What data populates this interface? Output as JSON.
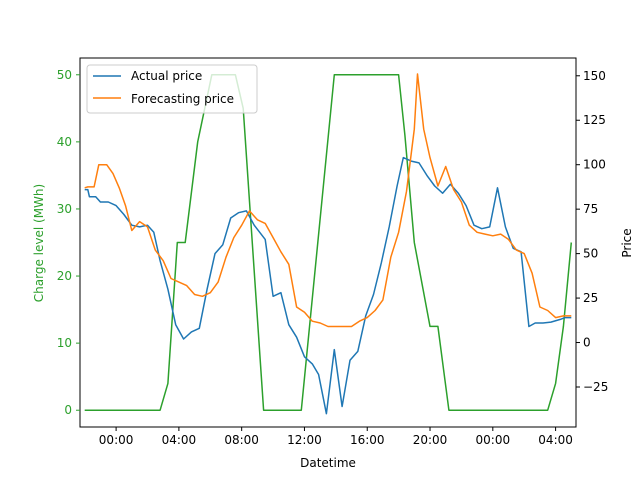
{
  "chart_data": {
    "type": "line",
    "title": "",
    "xlabel": "Datetime",
    "ylabel_left": "Charge level (MWh)",
    "ylabel_right": "Price",
    "x_unit": "hours elapsed from 00:00 of the first day",
    "x_ticks": [
      {
        "x": 0,
        "label": "00:00"
      },
      {
        "x": 4,
        "label": "04:00"
      },
      {
        "x": 8,
        "label": "08:00"
      },
      {
        "x": 12,
        "label": "12:00"
      },
      {
        "x": 16,
        "label": "16:00"
      },
      {
        "x": 20,
        "label": "20:00"
      },
      {
        "x": 24,
        "label": "00:00"
      },
      {
        "x": 28,
        "label": "04:00"
      }
    ],
    "x_range": [
      -2.3,
      29.3
    ],
    "y_left_range": [
      -2.5,
      52.5
    ],
    "y_left_ticks": [
      0,
      10,
      20,
      30,
      40,
      50
    ],
    "y_right_range": [
      -47.5,
      160
    ],
    "y_right_ticks": [
      -25,
      0,
      25,
      50,
      75,
      100,
      125,
      150
    ],
    "legend": {
      "position": "top-left",
      "entries": [
        "Actual price",
        "Forecasting price"
      ]
    },
    "grid": false,
    "colors": {
      "actual": "#1f77b4",
      "forecast": "#ff7f0e",
      "charge": "#2ca02c"
    },
    "series": [
      {
        "name": "Actual price",
        "axis": "right",
        "color": "#1f77b4",
        "points": [
          [
            -2,
            86
          ],
          [
            -1.8,
            86
          ],
          [
            -1.7,
            82
          ],
          [
            -1.3,
            82
          ],
          [
            -1.0,
            79
          ],
          [
            -0.5,
            79
          ],
          [
            0.0,
            77
          ],
          [
            0.5,
            72
          ],
          [
            1.0,
            66
          ],
          [
            1.5,
            65
          ],
          [
            2.0,
            66
          ],
          [
            2.4,
            62
          ],
          [
            2.8,
            46
          ],
          [
            3.3,
            30
          ],
          [
            3.8,
            10
          ],
          [
            4.3,
            2
          ],
          [
            4.8,
            6
          ],
          [
            5.3,
            8
          ],
          [
            5.8,
            30
          ],
          [
            6.3,
            50
          ],
          [
            6.8,
            55
          ],
          [
            7.3,
            70
          ],
          [
            7.8,
            73
          ],
          [
            8.3,
            74
          ],
          [
            8.8,
            66
          ],
          [
            9.5,
            58
          ],
          [
            10.0,
            26
          ],
          [
            10.5,
            28
          ],
          [
            11.0,
            10
          ],
          [
            11.5,
            3
          ],
          [
            12.0,
            -8
          ],
          [
            12.5,
            -12
          ],
          [
            12.9,
            -18
          ],
          [
            13.4,
            -40
          ],
          [
            13.9,
            -4
          ],
          [
            14.4,
            -36
          ],
          [
            14.9,
            -10
          ],
          [
            15.4,
            -5
          ],
          [
            15.9,
            15
          ],
          [
            16.4,
            27
          ],
          [
            16.9,
            45
          ],
          [
            17.4,
            65
          ],
          [
            17.9,
            88
          ],
          [
            18.3,
            104
          ],
          [
            18.8,
            102
          ],
          [
            19.3,
            101
          ],
          [
            19.8,
            94
          ],
          [
            20.3,
            88
          ],
          [
            20.8,
            84
          ],
          [
            21.3,
            89
          ],
          [
            21.8,
            84
          ],
          [
            22.3,
            77
          ],
          [
            22.8,
            66
          ],
          [
            23.3,
            64
          ],
          [
            23.8,
            65
          ],
          [
            24.3,
            87
          ],
          [
            24.8,
            65
          ],
          [
            25.3,
            53
          ],
          [
            25.8,
            51
          ],
          [
            26.3,
            9
          ],
          [
            26.7,
            11
          ],
          [
            27.2,
            11
          ],
          [
            27.7,
            11.5
          ],
          [
            28.3,
            13
          ],
          [
            28.6,
            14
          ],
          [
            29.0,
            14
          ]
        ]
      },
      {
        "name": "Forecasting price",
        "axis": "right",
        "color": "#ff7f0e",
        "points": [
          [
            -2,
            87
          ],
          [
            -1.8,
            87.5
          ],
          [
            -1.4,
            87.5
          ],
          [
            -1.1,
            100
          ],
          [
            -0.6,
            100
          ],
          [
            -0.2,
            95
          ],
          [
            0.2,
            87
          ],
          [
            0.6,
            77
          ],
          [
            1.0,
            63
          ],
          [
            1.5,
            68
          ],
          [
            2.0,
            65
          ],
          [
            2.5,
            52
          ],
          [
            3.0,
            46
          ],
          [
            3.5,
            36
          ],
          [
            4.0,
            34
          ],
          [
            4.5,
            32
          ],
          [
            5.0,
            27
          ],
          [
            5.5,
            26
          ],
          [
            6.0,
            28
          ],
          [
            6.5,
            34
          ],
          [
            7.0,
            48
          ],
          [
            7.5,
            59
          ],
          [
            8.0,
            66
          ],
          [
            8.5,
            74
          ],
          [
            9.0,
            69
          ],
          [
            9.5,
            67
          ],
          [
            10.0,
            59
          ],
          [
            10.5,
            51
          ],
          [
            11.0,
            44
          ],
          [
            11.5,
            20
          ],
          [
            12.0,
            17
          ],
          [
            12.5,
            12
          ],
          [
            13.0,
            11
          ],
          [
            13.5,
            9
          ],
          [
            14.0,
            9
          ],
          [
            14.5,
            9
          ],
          [
            15.0,
            9
          ],
          [
            15.5,
            12
          ],
          [
            16.0,
            14
          ],
          [
            16.5,
            18
          ],
          [
            17.0,
            24
          ],
          [
            17.5,
            48
          ],
          [
            18.0,
            62
          ],
          [
            18.5,
            85
          ],
          [
            19.0,
            120
          ],
          [
            19.2,
            151
          ],
          [
            19.6,
            120
          ],
          [
            20.0,
            104
          ],
          [
            20.5,
            88
          ],
          [
            21.0,
            99
          ],
          [
            21.5,
            86
          ],
          [
            22.0,
            79
          ],
          [
            22.5,
            66
          ],
          [
            23.0,
            62
          ],
          [
            23.5,
            61
          ],
          [
            24.0,
            60
          ],
          [
            24.5,
            61
          ],
          [
            25.0,
            58
          ],
          [
            25.5,
            52
          ],
          [
            26.0,
            50
          ],
          [
            26.5,
            39
          ],
          [
            27.0,
            20
          ],
          [
            27.5,
            18
          ],
          [
            28.0,
            14
          ],
          [
            28.5,
            15
          ],
          [
            29.0,
            15
          ]
        ]
      },
      {
        "name": "",
        "axis": "left",
        "color": "#2ca02c",
        "points": [
          [
            -2,
            0
          ],
          [
            -1,
            0
          ],
          [
            0,
            0
          ],
          [
            1,
            0
          ],
          [
            2,
            0
          ],
          [
            2.8,
            0
          ],
          [
            3.3,
            4
          ],
          [
            3.9,
            25
          ],
          [
            4.4,
            25
          ],
          [
            5.2,
            40
          ],
          [
            6.1,
            50
          ],
          [
            7.2,
            50
          ],
          [
            7.6,
            50
          ],
          [
            8.1,
            45
          ],
          [
            9.4,
            0
          ],
          [
            10.4,
            0
          ],
          [
            11.8,
            0
          ],
          [
            13.9,
            50
          ],
          [
            15.0,
            50
          ],
          [
            18.0,
            50
          ],
          [
            18.4,
            41
          ],
          [
            19.0,
            25
          ],
          [
            20.0,
            12.5
          ],
          [
            20.5,
            12.5
          ],
          [
            21.2,
            0
          ],
          [
            23,
            0
          ],
          [
            26,
            0
          ],
          [
            27.5,
            0
          ],
          [
            28.0,
            4
          ],
          [
            28.5,
            12.5
          ],
          [
            29.0,
            25
          ]
        ]
      }
    ]
  }
}
